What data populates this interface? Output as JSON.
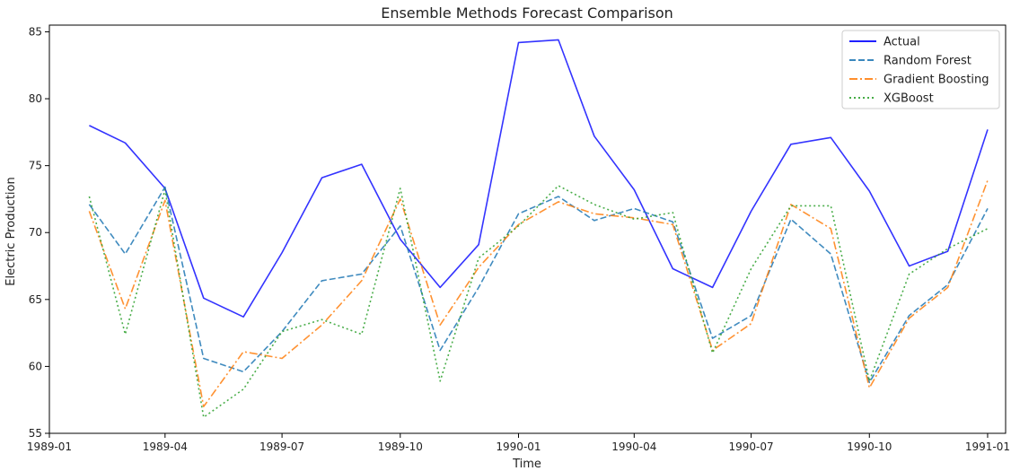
{
  "chart_data": {
    "type": "line",
    "title": "Ensemble Methods Forecast Comparison",
    "xlabel": "Time",
    "ylabel": "Electric Production",
    "xlim": [
      "1989-01-01",
      "1991-01-15"
    ],
    "ylim": [
      55,
      85.5
    ],
    "x_ticks": [
      "1989-01",
      "1989-04",
      "1989-07",
      "1989-10",
      "1990-01",
      "1990-04",
      "1990-07",
      "1990-10",
      "1991-01"
    ],
    "x_tick_dates": [
      "1989-01-01",
      "1989-04-01",
      "1989-07-01",
      "1989-10-01",
      "1990-01-01",
      "1990-04-01",
      "1990-07-01",
      "1990-10-01",
      "1991-01-01"
    ],
    "y_ticks": [
      55,
      60,
      65,
      70,
      75,
      80,
      85
    ],
    "grid": false,
    "legend_position": "top-right",
    "x": [
      "1989-02-01",
      "1989-03-01",
      "1989-04-01",
      "1989-05-01",
      "1989-06-01",
      "1989-07-01",
      "1989-08-01",
      "1989-09-01",
      "1989-10-01",
      "1989-11-01",
      "1989-12-01",
      "1990-01-01",
      "1990-02-01",
      "1990-03-01",
      "1990-04-01",
      "1990-05-01",
      "1990-06-01",
      "1990-07-01",
      "1990-08-01",
      "1990-09-01",
      "1990-10-01",
      "1990-11-01",
      "1990-12-01",
      "1991-01-01"
    ],
    "series": [
      {
        "name": "Actual",
        "color": "#0000ff",
        "style": "solid",
        "values": [
          78.0,
          76.7,
          73.3,
          65.1,
          63.7,
          68.5,
          74.1,
          75.1,
          69.5,
          65.9,
          69.1,
          84.2,
          84.4,
          77.2,
          73.2,
          67.3,
          65.9,
          71.6,
          76.6,
          77.1,
          73.1,
          67.5,
          68.6,
          77.7
        ]
      },
      {
        "name": "Random Forest",
        "color": "#1f77b4",
        "style": "dashed",
        "values": [
          72.1,
          68.4,
          73.4,
          60.6,
          59.6,
          62.6,
          66.4,
          66.9,
          70.5,
          61.2,
          65.9,
          71.4,
          72.7,
          70.9,
          71.8,
          70.8,
          62.1,
          63.8,
          71.0,
          68.4,
          58.8,
          63.8,
          66.1,
          71.8
        ]
      },
      {
        "name": "Gradient Boosting",
        "color": "#ff7f0e",
        "style": "dashdot",
        "values": [
          71.6,
          64.3,
          72.4,
          57.0,
          61.1,
          60.6,
          63.1,
          66.4,
          72.5,
          63.1,
          67.4,
          70.6,
          72.3,
          71.4,
          71.1,
          70.6,
          61.2,
          63.2,
          72.1,
          70.3,
          58.4,
          63.6,
          65.9,
          73.9
        ]
      },
      {
        "name": "XGBoost",
        "color": "#2ca02c",
        "style": "dotted",
        "values": [
          72.7,
          62.4,
          73.2,
          56.2,
          58.3,
          62.6,
          63.5,
          62.4,
          73.3,
          58.9,
          68.1,
          70.5,
          73.5,
          72.1,
          71.0,
          71.5,
          61.0,
          67.3,
          72.0,
          72.0,
          58.9,
          66.9,
          68.8,
          70.3
        ]
      }
    ]
  }
}
